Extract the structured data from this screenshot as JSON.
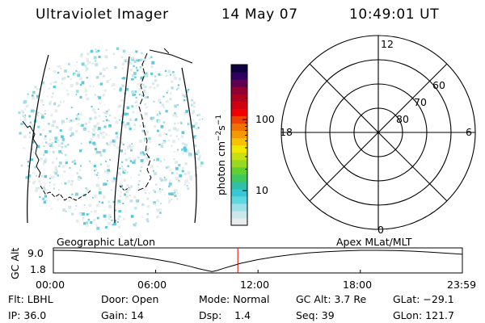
{
  "header": {
    "title": "Ultraviolet Imager",
    "date": "14 May 07",
    "time": "10:49:01 UT"
  },
  "colorbar": {
    "label": "photon cm$^{-2}$s$^{-1}$",
    "label_main": "photon cm",
    "label_exp1": "−2",
    "label_mid": "s",
    "label_exp2": "−1",
    "tick_labels": [
      "100",
      "10"
    ],
    "colors": [
      "#e8ecec",
      "#c8e8ec",
      "#9ee0e8",
      "#5ed8e0",
      "#38c8d8",
      "#30c0a8",
      "#40c860",
      "#60d030",
      "#98d820",
      "#c8e010",
      "#f0e800",
      "#f8c000",
      "#f89800",
      "#f07000",
      "#f04000",
      "#f00000",
      "#d00010",
      "#b00020",
      "#900030",
      "#600050",
      "#300060",
      "#100040"
    ]
  },
  "polar_plot": {
    "mlt_labels": {
      "top": "12",
      "left": "18",
      "right": "6",
      "bottom": "0"
    },
    "lat_labels": [
      "60",
      "70",
      "80"
    ]
  },
  "timeline": {
    "label_left": "Geographic Lat/Lon",
    "label_right": "Apex MLat/MLT",
    "y_axis_label": "GC Alt",
    "y_ticks": [
      "9.0",
      "1.8"
    ],
    "x_ticks": [
      "00:00",
      "06:00",
      "12:00",
      "18:00",
      "23:59"
    ],
    "current_marker_color": "#e00000"
  },
  "chart_data": {
    "type": "line",
    "title": "",
    "xlabel": "",
    "ylabel": "GC Alt",
    "xlim": [
      0,
      23.983
    ],
    "ylim": [
      1.8,
      9.0
    ],
    "x": [
      0,
      1,
      2,
      3,
      4,
      5,
      6,
      7,
      8,
      8.5,
      9,
      9.3,
      9.6,
      10,
      10.5,
      11,
      12,
      13,
      14,
      15,
      16,
      17,
      18,
      19,
      20,
      21,
      22,
      23,
      23.983
    ],
    "series": [
      {
        "values": [
          9.0,
          8.9,
          8.6,
          8.1,
          7.5,
          6.7,
          5.8,
          4.7,
          3.3,
          2.5,
          1.8,
          1.4,
          1.8,
          2.6,
          3.5,
          4.4,
          5.7,
          6.7,
          7.5,
          8.1,
          8.5,
          8.8,
          9.0,
          9.0,
          8.9,
          8.7,
          8.4,
          8.0,
          7.6
        ]
      }
    ],
    "current_time": 10.817
  },
  "footer": {
    "flt": "Flt: LBHL",
    "ip": "IP: 36.0",
    "door": "Door: Open",
    "gain": "Gain: 14",
    "mode": "Mode: Normal",
    "dsp": "Dsp:    1.4",
    "gc_alt": "GC Alt: 3.7 Re",
    "seq": "Seq: 39",
    "glat": "GLat: −29.1",
    "glon": "GLon: 121.7"
  }
}
